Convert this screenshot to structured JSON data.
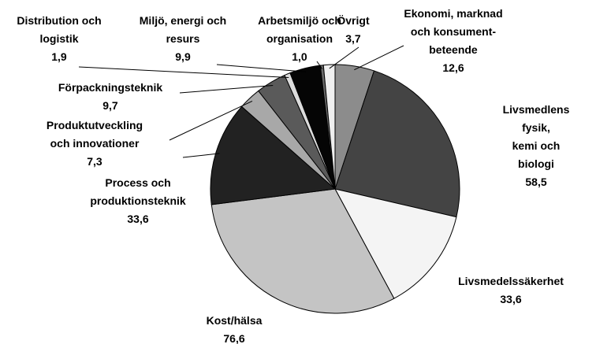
{
  "chart_data": {
    "type": "pie",
    "categories": [
      "Ekonomi, marknad\noch konsument-\nbeteende",
      "Livsmedlens fysik,\nkemi och biologi",
      "Livsmedelssäkerhet",
      "Kost/hälsa",
      "Process och\nproduktionsteknik",
      "Produktutveckling\noch innovationer",
      "Förpackningsteknik",
      "Distribution och\nlogistik",
      "Miljö, energi och\nresurs",
      "Arbetsmiljö och\norganisation",
      "Övrigt"
    ],
    "values": [
      12.6,
      58.5,
      33.6,
      76.6,
      33.6,
      7.3,
      9.7,
      1.9,
      9.9,
      1.0,
      3.7
    ],
    "value_labels": [
      "12,6",
      "58,5",
      "33,6",
      "76,6",
      "33,6",
      "7,3",
      "9,7",
      "1,9",
      "9,9",
      "1,0",
      "3,7"
    ],
    "colors": [
      "#8c8c8c",
      "#444444",
      "#f4f4f4",
      "#c4c4c4",
      "#222222",
      "#a8a8a8",
      "#5a5a5a",
      "#dcdcdc",
      "#050505",
      "#6a6a6a",
      "#efefef"
    ]
  }
}
